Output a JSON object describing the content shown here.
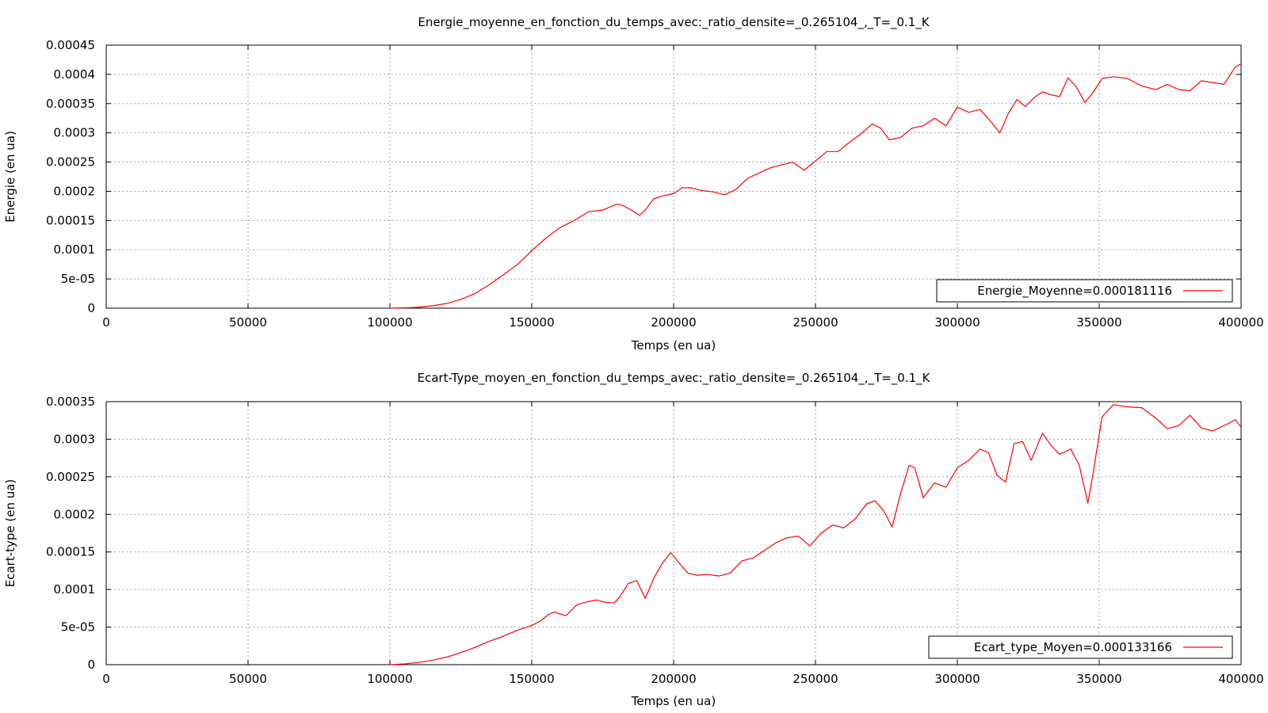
{
  "chart_data": [
    {
      "type": "line",
      "title": "Energie_moyenne_en_fonction_du_temps_avec:_ratio_densite=_0.265104_,_T=_0.1_K",
      "xlabel": "Temps (en ua)",
      "ylabel": "Energie (en ua)",
      "xlim": [
        0,
        400000
      ],
      "ylim": [
        0,
        0.00045
      ],
      "xticks": [
        0,
        50000,
        100000,
        150000,
        200000,
        250000,
        300000,
        350000,
        400000
      ],
      "xtick_labels": [
        "0",
        "50000",
        "100000",
        "150000",
        "200000",
        "250000",
        "300000",
        "350000",
        "400000"
      ],
      "yticks": [
        0,
        5e-05,
        0.0001,
        0.00015,
        0.0002,
        0.00025,
        0.0003,
        0.00035,
        0.0004,
        0.00045
      ],
      "ytick_labels": [
        "0",
        "5e-05",
        "0.0001",
        "0.00015",
        "0.0002",
        "0.00025",
        "0.0003",
        "0.00035",
        "0.0004",
        "0.00045"
      ],
      "grid": true,
      "legend_position": "bottom-right",
      "series": [
        {
          "name": "Energie_Moyenne=0.000181116",
          "color": "#ff0000",
          "x": [
            100000,
            105000,
            110000,
            115000,
            120000,
            125000,
            130000,
            135000,
            140000,
            145000,
            150000,
            155000,
            160000,
            165000,
            170000,
            175000,
            180000,
            182000,
            185000,
            188000,
            190000,
            193000,
            196000,
            200000,
            203000,
            206000,
            210000,
            214000,
            218000,
            222000,
            226000,
            230000,
            234000,
            238000,
            242000,
            246000,
            250000,
            254000,
            258000,
            262000,
            266000,
            270000,
            273000,
            276000,
            280000,
            284000,
            288000,
            292000,
            296000,
            300000,
            304000,
            308000,
            312000,
            315000,
            318000,
            321000,
            324000,
            327000,
            330000,
            333000,
            336000,
            339000,
            342000,
            345000,
            348000,
            351000,
            355000,
            360000,
            365000,
            370000,
            374000,
            378000,
            382000,
            386000,
            390000,
            394000,
            398000,
            400000
          ],
          "y": [
            0,
            5e-07,
            1.5e-06,
            4e-06,
            8e-06,
            1.5e-05,
            2.5e-05,
            4e-05,
            5.7e-05,
            7.5e-05,
            9.85e-05,
            0.00012,
            0.000138,
            0.00015,
            0.000165,
            0.000168,
            0.000178,
            0.000176,
            0.000168,
            0.000159,
            0.000168,
            0.000187,
            0.000192,
            0.000196,
            0.000206,
            0.000206,
            0.000201,
            0.000199,
            0.000194,
            0.000203,
            0.000222,
            0.000231,
            0.00024,
            0.000245,
            0.00025,
            0.000236,
            0.000252,
            0.000268,
            0.000268,
            0.000284,
            0.000298,
            0.000315,
            0.000308,
            0.000288,
            0.000292,
            0.000308,
            0.000312,
            0.000325,
            0.000312,
            0.000344,
            0.000335,
            0.00034,
            0.000318,
            0.0003,
            0.000333,
            0.000357,
            0.000345,
            0.00036,
            0.00037,
            0.000365,
            0.000362,
            0.000394,
            0.000378,
            0.000352,
            0.00037,
            0.000393,
            0.000396,
            0.000393,
            0.00038,
            0.000374,
            0.000383,
            0.000374,
            0.000372,
            0.000389,
            0.000386,
            0.000383,
            0.000413,
            0.000418
          ]
        }
      ]
    },
    {
      "type": "line",
      "title": "Ecart-Type_moyen_en_fonction_du_temps_avec:_ratio_densite=_0.265104_,_T=_0.1_K",
      "xlabel": "Temps (en ua)",
      "ylabel": "Ecart-type (en ua)",
      "xlim": [
        0,
        400000
      ],
      "ylim": [
        0,
        0.00035
      ],
      "xticks": [
        0,
        50000,
        100000,
        150000,
        200000,
        250000,
        300000,
        350000,
        400000
      ],
      "xtick_labels": [
        "0",
        "50000",
        "100000",
        "150000",
        "200000",
        "250000",
        "300000",
        "350000",
        "400000"
      ],
      "yticks": [
        0,
        5e-05,
        0.0001,
        0.00015,
        0.0002,
        0.00025,
        0.0003,
        0.00035
      ],
      "ytick_labels": [
        "0",
        "5e-05",
        "0.0001",
        "0.00015",
        "0.0002",
        "0.00025",
        "0.0003",
        "0.00035"
      ],
      "grid": true,
      "legend_position": "bottom-right",
      "series": [
        {
          "name": "Ecart_type_Moyen=0.000133166",
          "color": "#ff0000",
          "x": [
            100000,
            105000,
            110000,
            115000,
            120000,
            125000,
            130000,
            135000,
            140000,
            145000,
            150000,
            153000,
            156000,
            158000,
            162000,
            166000,
            170000,
            173000,
            176000,
            179000,
            181000,
            184000,
            187000,
            190000,
            193000,
            196000,
            199000,
            202000,
            205000,
            208000,
            212000,
            216000,
            220000,
            224000,
            228000,
            232000,
            236000,
            240000,
            244000,
            248000,
            252000,
            256000,
            260000,
            264000,
            268000,
            271000,
            274000,
            277000,
            280000,
            283000,
            285000,
            288000,
            292000,
            296000,
            300000,
            304000,
            308000,
            311000,
            314000,
            317000,
            320000,
            323000,
            326000,
            330000,
            333000,
            336000,
            340000,
            343000,
            346000,
            348000,
            351000,
            355000,
            360000,
            365000,
            370000,
            374000,
            378000,
            382000,
            386000,
            390000,
            395000,
            398000,
            400000
          ],
          "y": [
            0,
            1e-06,
            3e-06,
            6e-06,
            1e-05,
            1.6e-05,
            2.3e-05,
            3.1e-05,
            3.8e-05,
            4.6e-05,
            5.2e-05,
            5.8e-05,
            6.7e-05,
            7e-05,
            6.5e-05,
            8e-05,
            8.4e-05,
            8.6e-05,
            8.3e-05,
            8.2e-05,
            9e-05,
            0.000108,
            0.000112,
            8.8e-05,
            0.000115,
            0.000135,
            0.000149,
            0.000135,
            0.000122,
            0.000119,
            0.00012,
            0.000118,
            0.000122,
            0.000138,
            0.000142,
            0.000152,
            0.000162,
            0.000169,
            0.000171,
            0.000158,
            0.000175,
            0.000186,
            0.000182,
            0.000194,
            0.000214,
            0.000218,
            0.000205,
            0.000183,
            0.000228,
            0.000265,
            0.000262,
            0.000222,
            0.000242,
            0.000236,
            0.000262,
            0.000272,
            0.000287,
            0.000282,
            0.000252,
            0.000243,
            0.000294,
            0.000297,
            0.000272,
            0.000308,
            0.000292,
            0.00028,
            0.000287,
            0.000265,
            0.000215,
            0.000258,
            0.00033,
            0.000346,
            0.000343,
            0.000342,
            0.000328,
            0.000314,
            0.000318,
            0.000332,
            0.000315,
            0.000311,
            0.00032,
            0.000326,
            0.000316
          ]
        }
      ]
    }
  ]
}
